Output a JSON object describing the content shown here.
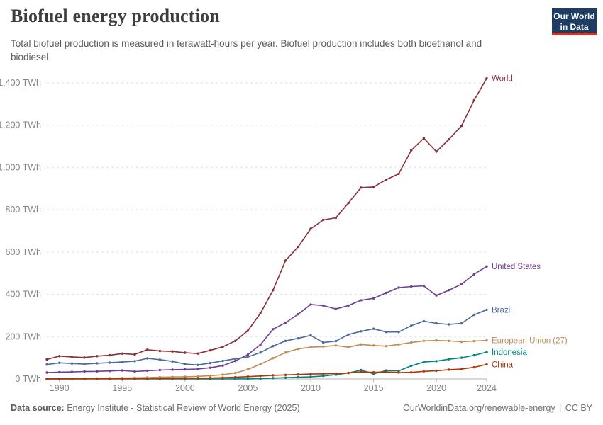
{
  "header": {
    "title": "Biofuel energy production",
    "subtitle": "Total biofuel production is measured in terawatt-hours per year. Biofuel production includes both bioethanol and biodiesel.",
    "logo": {
      "line1": "Our World",
      "line2": "in Data",
      "bg_color": "#1d3d63",
      "accent_color": "#d93025"
    }
  },
  "footer": {
    "source_label": "Data source:",
    "source_text": "Energy Institute - Statistical Review of World Energy (2025)",
    "link": "OurWorldinData.org/renewable-energy",
    "separator": "|",
    "license": "CC BY"
  },
  "chart_data": {
    "type": "line",
    "title": "Biofuel energy production",
    "unit": "TWh",
    "xlim": [
      1989,
      2024
    ],
    "ylim": [
      0,
      1400
    ],
    "grid": "horizontal-dashed",
    "legend": "end-of-line-labels",
    "x_ticks": [
      1990,
      1995,
      2000,
      2005,
      2010,
      2015,
      2020,
      2024
    ],
    "y_ticks": [
      {
        "value": 0,
        "label": "0 TWh"
      },
      {
        "value": 200,
        "label": "200 TWh"
      },
      {
        "value": 400,
        "label": "400 TWh"
      },
      {
        "value": 600,
        "label": "600 TWh"
      },
      {
        "value": 800,
        "label": "800 TWh"
      },
      {
        "value": 1000,
        "label": "1,000 TWh"
      },
      {
        "value": 1200,
        "label": "1,200 TWh"
      },
      {
        "value": 1400,
        "label": "1,400 TWh"
      }
    ],
    "years": [
      1989,
      1990,
      1991,
      1992,
      1993,
      1994,
      1995,
      1996,
      1997,
      1998,
      1999,
      2000,
      2001,
      2002,
      2003,
      2004,
      2005,
      2006,
      2007,
      2008,
      2009,
      2010,
      2011,
      2012,
      2013,
      2014,
      2015,
      2016,
      2017,
      2018,
      2019,
      2020,
      2021,
      2022,
      2023,
      2024
    ],
    "series": [
      {
        "id": "world",
        "name": "World",
        "color": "#883039",
        "values": [
          92,
          108,
          104,
          101,
          108,
          112,
          120,
          116,
          138,
          132,
          130,
          124,
          120,
          135,
          152,
          180,
          228,
          310,
          420,
          560,
          625,
          710,
          752,
          762,
          832,
          905,
          908,
          942,
          970,
          1081,
          1138,
          1075,
          1133,
          1197,
          1318,
          1421
        ]
      },
      {
        "id": "united-states",
        "name": "United States",
        "color": "#6d3e91",
        "values": [
          30,
          32,
          33,
          35,
          36,
          38,
          40,
          35,
          39,
          42,
          44,
          45,
          47,
          53,
          63,
          85,
          115,
          162,
          235,
          266,
          306,
          352,
          347,
          331,
          347,
          372,
          381,
          407,
          432,
          437,
          440,
          395,
          420,
          448,
          495,
          532
        ]
      },
      {
        "id": "brazil",
        "name": "Brazil",
        "color": "#4c6a9c",
        "values": [
          68,
          76,
          73,
          70,
          74,
          77,
          80,
          84,
          97,
          91,
          83,
          70,
          66,
          75,
          85,
          95,
          104,
          125,
          155,
          180,
          192,
          206,
          172,
          179,
          210,
          225,
          237,
          222,
          222,
          252,
          273,
          263,
          258,
          263,
          303,
          327
        ]
      },
      {
        "id": "european-union-27",
        "name": "European Union (27)",
        "color": "#bc8e5a",
        "values": [
          0.4,
          0.5,
          0.7,
          1.2,
          2.4,
          3.6,
          4.4,
          5.5,
          6.6,
          8,
          9.4,
          10.5,
          12,
          15.5,
          20,
          28,
          45,
          70,
          98,
          125,
          142,
          150,
          153,
          158,
          150,
          163,
          158,
          155,
          163,
          172,
          180,
          182,
          180,
          176,
          179,
          182
        ]
      },
      {
        "id": "indonesia",
        "name": "Indonesia",
        "color": "#00847e",
        "values": [
          0,
          0,
          0,
          0,
          0,
          0,
          0,
          0,
          0,
          0,
          0,
          0.1,
          0.1,
          0.2,
          0.3,
          0.3,
          0.5,
          1.5,
          4,
          6,
          8,
          10,
          14,
          20,
          28,
          42,
          24,
          40,
          38,
          62,
          80,
          84,
          93,
          100,
          112,
          127
        ]
      },
      {
        "id": "china",
        "name": "China",
        "color": "#b13507",
        "values": [
          0.5,
          0.6,
          0.7,
          0.8,
          0.9,
          1,
          1.2,
          1.4,
          1.6,
          1.8,
          2,
          3,
          3.5,
          4.5,
          6,
          8,
          11,
          14,
          17,
          19,
          21,
          23,
          24,
          25,
          28,
          33,
          31,
          33,
          30,
          31,
          36,
          39,
          44,
          47,
          55,
          69
        ]
      }
    ]
  }
}
